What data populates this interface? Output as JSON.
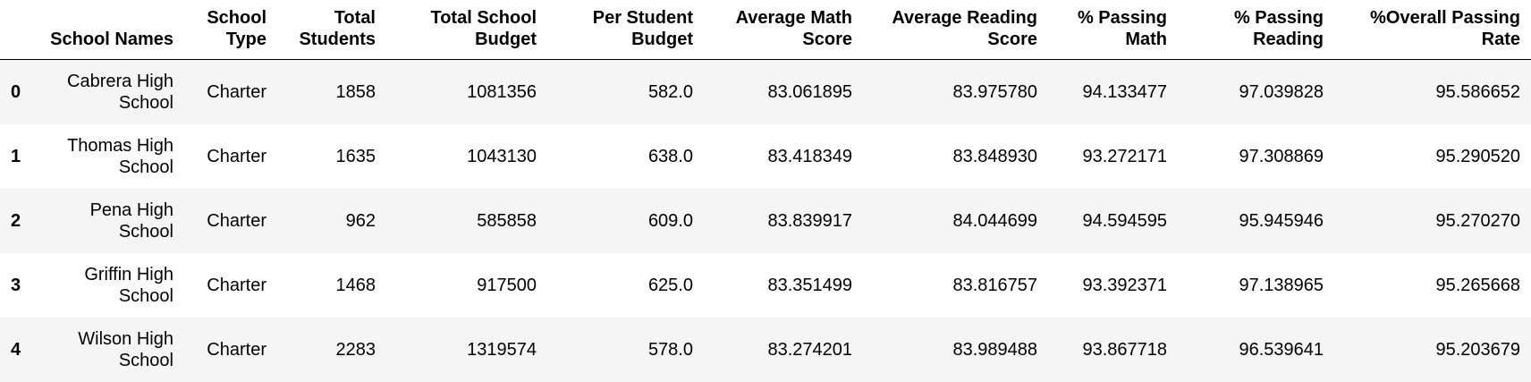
{
  "table": {
    "headers": [
      "",
      "School Names",
      "School Type",
      "Total Students",
      "Total School Budget",
      "Per Student Budget",
      "Average Math Score",
      "Average Reading Score",
      "% Passing Math",
      "% Passing Reading",
      "%Overall Passing Rate"
    ],
    "rows": [
      {
        "index": "0",
        "school_name": "Cabrera High School",
        "school_type": "Charter",
        "total_students": "1858",
        "total_school_budget": "1081356",
        "per_student_budget": "582.0",
        "avg_math": "83.061895",
        "avg_reading": "83.975780",
        "pct_passing_math": "94.133477",
        "pct_passing_reading": "97.039828",
        "pct_overall": "95.586652"
      },
      {
        "index": "1",
        "school_name": "Thomas High School",
        "school_type": "Charter",
        "total_students": "1635",
        "total_school_budget": "1043130",
        "per_student_budget": "638.0",
        "avg_math": "83.418349",
        "avg_reading": "83.848930",
        "pct_passing_math": "93.272171",
        "pct_passing_reading": "97.308869",
        "pct_overall": "95.290520"
      },
      {
        "index": "2",
        "school_name": "Pena High School",
        "school_type": "Charter",
        "total_students": "962",
        "total_school_budget": "585858",
        "per_student_budget": "609.0",
        "avg_math": "83.839917",
        "avg_reading": "84.044699",
        "pct_passing_math": "94.594595",
        "pct_passing_reading": "95.945946",
        "pct_overall": "95.270270"
      },
      {
        "index": "3",
        "school_name": "Griffin High School",
        "school_type": "Charter",
        "total_students": "1468",
        "total_school_budget": "917500",
        "per_student_budget": "625.0",
        "avg_math": "83.351499",
        "avg_reading": "83.816757",
        "pct_passing_math": "93.392371",
        "pct_passing_reading": "97.138965",
        "pct_overall": "95.265668"
      },
      {
        "index": "4",
        "school_name": "Wilson High School",
        "school_type": "Charter",
        "total_students": "2283",
        "total_school_budget": "1319574",
        "per_student_budget": "578.0",
        "avg_math": "83.274201",
        "avg_reading": "83.989488",
        "pct_passing_math": "93.867718",
        "pct_passing_reading": "96.539641",
        "pct_overall": "95.203679"
      }
    ]
  }
}
